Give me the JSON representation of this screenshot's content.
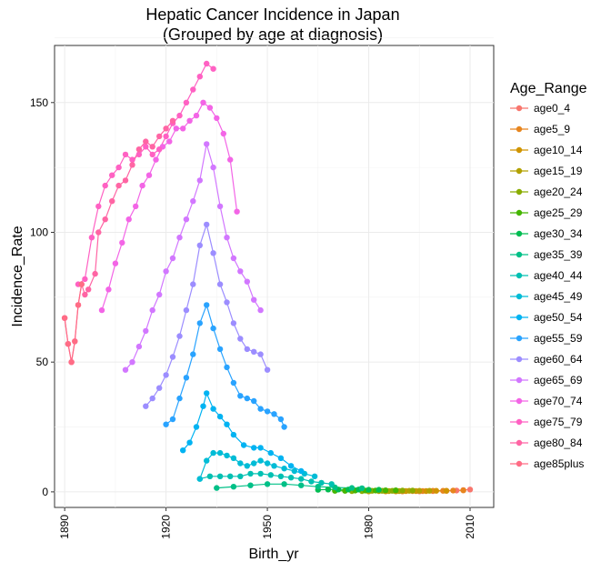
{
  "chart_data": {
    "type": "line",
    "title": "Hepatic Cancer Incidence in Japan",
    "subtitle": "(Grouped by age at diagnosis)",
    "xlabel": "Birth_yr",
    "ylabel": "Incidence_Rate",
    "xlim": [
      1887,
      2017
    ],
    "ylim": [
      -6,
      172
    ],
    "x_ticks": [
      1890,
      1920,
      1950,
      1980,
      2010
    ],
    "y_ticks": [
      0,
      50,
      100,
      150
    ],
    "grid": true,
    "markers": true,
    "legend": {
      "title": "Age_Range",
      "position": "right"
    },
    "series": [
      {
        "name": "age0_4",
        "color": "#F8766D",
        "points": [
          [
            1995,
            0.2
          ],
          [
            1999,
            0.3
          ],
          [
            2003,
            0.4
          ],
          [
            2006,
            0.5
          ],
          [
            2008,
            0.7
          ],
          [
            2010,
            0.9
          ]
        ]
      },
      {
        "name": "age5_9",
        "color": "#E7851E",
        "points": [
          [
            1990,
            0.2
          ],
          [
            1993,
            0.3
          ],
          [
            1996,
            0.3
          ],
          [
            1999,
            0.4
          ],
          [
            2002,
            0.4
          ],
          [
            2005,
            0.5
          ],
          [
            2008,
            0.6
          ]
        ]
      },
      {
        "name": "age10_14",
        "color": "#D09400",
        "points": [
          [
            1985,
            0.2
          ],
          [
            1988,
            0.2
          ],
          [
            1991,
            0.3
          ],
          [
            1994,
            0.3
          ],
          [
            1997,
            0.3
          ],
          [
            2000,
            0.4
          ],
          [
            2003,
            0.4
          ]
        ]
      },
      {
        "name": "age15_19",
        "color": "#B2A100",
        "points": [
          [
            1980,
            0.2
          ],
          [
            1983,
            0.3
          ],
          [
            1986,
            0.3
          ],
          [
            1989,
            0.3
          ],
          [
            1992,
            0.4
          ],
          [
            1995,
            0.4
          ],
          [
            1998,
            0.4
          ]
        ]
      },
      {
        "name": "age20_24",
        "color": "#89AC00",
        "points": [
          [
            1975,
            0.3
          ],
          [
            1978,
            0.3
          ],
          [
            1981,
            0.4
          ],
          [
            1984,
            0.4
          ],
          [
            1987,
            0.4
          ],
          [
            1990,
            0.5
          ],
          [
            1993,
            0.5
          ]
        ]
      },
      {
        "name": "age25_29",
        "color": "#45B500",
        "points": [
          [
            1970,
            0.4
          ],
          [
            1973,
            0.4
          ],
          [
            1976,
            0.5
          ],
          [
            1979,
            0.5
          ],
          [
            1982,
            0.5
          ],
          [
            1985,
            0.6
          ],
          [
            1988,
            0.6
          ]
        ]
      },
      {
        "name": "age30_34",
        "color": "#00BC51",
        "points": [
          [
            1965,
            0.8
          ],
          [
            1968,
            0.9
          ],
          [
            1971,
            0.9
          ],
          [
            1974,
            0.9
          ],
          [
            1977,
            0.9
          ],
          [
            1980,
            0.8
          ],
          [
            1983,
            0.8
          ]
        ]
      },
      {
        "name": "age35_39",
        "color": "#00C087",
        "points": [
          [
            1935,
            1.5
          ],
          [
            1940,
            2.0
          ],
          [
            1945,
            2.5
          ],
          [
            1950,
            3.0
          ],
          [
            1955,
            3.0
          ],
          [
            1960,
            2.5
          ],
          [
            1965,
            2.0
          ],
          [
            1970,
            1.7
          ],
          [
            1975,
            1.5
          ],
          [
            1978,
            1.4
          ]
        ]
      },
      {
        "name": "age40_44",
        "color": "#00C0B2",
        "points": [
          [
            1930,
            5
          ],
          [
            1933,
            6
          ],
          [
            1936,
            6
          ],
          [
            1939,
            6
          ],
          [
            1942,
            6
          ],
          [
            1945,
            7
          ],
          [
            1948,
            7
          ],
          [
            1951,
            6.5
          ],
          [
            1954,
            6
          ],
          [
            1957,
            5.5
          ],
          [
            1960,
            5
          ],
          [
            1963,
            4
          ],
          [
            1966,
            3.5
          ],
          [
            1969,
            3
          ]
        ]
      },
      {
        "name": "age45_49",
        "color": "#00BCD6",
        "points": [
          [
            1930,
            5
          ],
          [
            1932,
            12
          ],
          [
            1934,
            15
          ],
          [
            1936,
            15
          ],
          [
            1938,
            14
          ],
          [
            1940,
            13
          ],
          [
            1942,
            11
          ],
          [
            1944,
            10
          ],
          [
            1946,
            11
          ],
          [
            1948,
            12
          ],
          [
            1950,
            11
          ],
          [
            1952,
            10
          ],
          [
            1955,
            9
          ],
          [
            1958,
            8
          ],
          [
            1961,
            7
          ],
          [
            1964,
            6
          ]
        ]
      },
      {
        "name": "age50_54",
        "color": "#00B3F2",
        "points": [
          [
            1925,
            16
          ],
          [
            1927,
            19
          ],
          [
            1929,
            25
          ],
          [
            1931,
            33
          ],
          [
            1932,
            38
          ],
          [
            1934,
            32
          ],
          [
            1936,
            29
          ],
          [
            1938,
            26
          ],
          [
            1940,
            22
          ],
          [
            1943,
            18
          ],
          [
            1946,
            17
          ],
          [
            1948,
            17
          ],
          [
            1951,
            15
          ],
          [
            1954,
            13
          ],
          [
            1957,
            10
          ],
          [
            1960,
            8
          ]
        ]
      },
      {
        "name": "age55_59",
        "color": "#29A3FF",
        "points": [
          [
            1920,
            26
          ],
          [
            1922,
            28
          ],
          [
            1924,
            36
          ],
          [
            1926,
            44
          ],
          [
            1928,
            53
          ],
          [
            1930,
            65
          ],
          [
            1932,
            72
          ],
          [
            1934,
            63
          ],
          [
            1936,
            55
          ],
          [
            1938,
            48
          ],
          [
            1940,
            42
          ],
          [
            1942,
            37
          ],
          [
            1944,
            36
          ],
          [
            1946,
            35
          ],
          [
            1948,
            32
          ],
          [
            1950,
            31
          ],
          [
            1952,
            30
          ],
          [
            1954,
            28
          ],
          [
            1955,
            25
          ]
        ]
      },
      {
        "name": "age60_64",
        "color": "#9C8DFF",
        "points": [
          [
            1914,
            33
          ],
          [
            1916,
            36
          ],
          [
            1918,
            40
          ],
          [
            1920,
            45
          ],
          [
            1922,
            52
          ],
          [
            1924,
            60
          ],
          [
            1926,
            70
          ],
          [
            1928,
            80
          ],
          [
            1930,
            95
          ],
          [
            1932,
            103
          ],
          [
            1934,
            92
          ],
          [
            1936,
            80
          ],
          [
            1938,
            73
          ],
          [
            1940,
            65
          ],
          [
            1942,
            59
          ],
          [
            1944,
            55
          ],
          [
            1946,
            54
          ],
          [
            1948,
            53
          ],
          [
            1950,
            47
          ]
        ]
      },
      {
        "name": "age65_69",
        "color": "#D277FF",
        "points": [
          [
            1908,
            47
          ],
          [
            1910,
            50
          ],
          [
            1912,
            56
          ],
          [
            1914,
            62
          ],
          [
            1916,
            70
          ],
          [
            1918,
            76
          ],
          [
            1920,
            85
          ],
          [
            1922,
            90
          ],
          [
            1924,
            98
          ],
          [
            1926,
            105
          ],
          [
            1928,
            112
          ],
          [
            1930,
            120
          ],
          [
            1932,
            134
          ],
          [
            1934,
            125
          ],
          [
            1936,
            110
          ],
          [
            1938,
            98
          ],
          [
            1940,
            90
          ],
          [
            1942,
            85
          ],
          [
            1944,
            81
          ],
          [
            1946,
            74
          ],
          [
            1948,
            70
          ]
        ]
      },
      {
        "name": "age70_74",
        "color": "#F365E6",
        "points": [
          [
            1901,
            70
          ],
          [
            1903,
            78
          ],
          [
            1905,
            88
          ],
          [
            1907,
            96
          ],
          [
            1909,
            105
          ],
          [
            1911,
            110
          ],
          [
            1913,
            118
          ],
          [
            1915,
            122
          ],
          [
            1917,
            128
          ],
          [
            1919,
            133
          ],
          [
            1921,
            135
          ],
          [
            1923,
            140
          ],
          [
            1925,
            140
          ],
          [
            1927,
            143
          ],
          [
            1929,
            145
          ],
          [
            1931,
            150
          ],
          [
            1933,
            148
          ],
          [
            1935,
            144
          ],
          [
            1937,
            138
          ],
          [
            1939,
            128
          ],
          [
            1941,
            108
          ]
        ]
      },
      {
        "name": "age75_79",
        "color": "#FF61C3",
        "points": [
          [
            1894,
            80
          ],
          [
            1896,
            82
          ],
          [
            1898,
            98
          ],
          [
            1900,
            110
          ],
          [
            1902,
            118
          ],
          [
            1904,
            122
          ],
          [
            1906,
            125
          ],
          [
            1908,
            130
          ],
          [
            1910,
            128
          ],
          [
            1912,
            130
          ],
          [
            1914,
            133
          ],
          [
            1916,
            130
          ],
          [
            1918,
            132
          ],
          [
            1920,
            137
          ],
          [
            1922,
            142
          ],
          [
            1924,
            145
          ],
          [
            1926,
            150
          ],
          [
            1928,
            155
          ],
          [
            1930,
            160
          ],
          [
            1932,
            165
          ],
          [
            1934,
            163
          ]
        ]
      },
      {
        "name": "age80_84",
        "color": "#FF65A4",
        "points": [
          [
            1890,
            67
          ],
          [
            1891,
            57
          ],
          [
            1892,
            50
          ],
          [
            1893,
            58
          ],
          [
            1894,
            72
          ],
          [
            1895,
            80
          ],
          [
            1896,
            76
          ],
          [
            1897,
            78
          ],
          [
            1899,
            84
          ],
          [
            1900,
            100
          ],
          [
            1902,
            105
          ],
          [
            1904,
            112
          ],
          [
            1906,
            118
          ],
          [
            1908,
            120
          ],
          [
            1910,
            126
          ],
          [
            1912,
            132
          ],
          [
            1914,
            135
          ],
          [
            1916,
            133
          ],
          [
            1918,
            137
          ],
          [
            1920,
            140
          ],
          [
            1922,
            143
          ]
        ]
      },
      {
        "name": "age85plus",
        "color": "#FF6C85",
        "points": [
          [
            1890,
            67
          ],
          [
            1891,
            57
          ],
          [
            1892,
            50
          ],
          [
            1893,
            58
          ],
          [
            1894,
            72
          ],
          [
            1895,
            80
          ]
        ]
      }
    ]
  }
}
